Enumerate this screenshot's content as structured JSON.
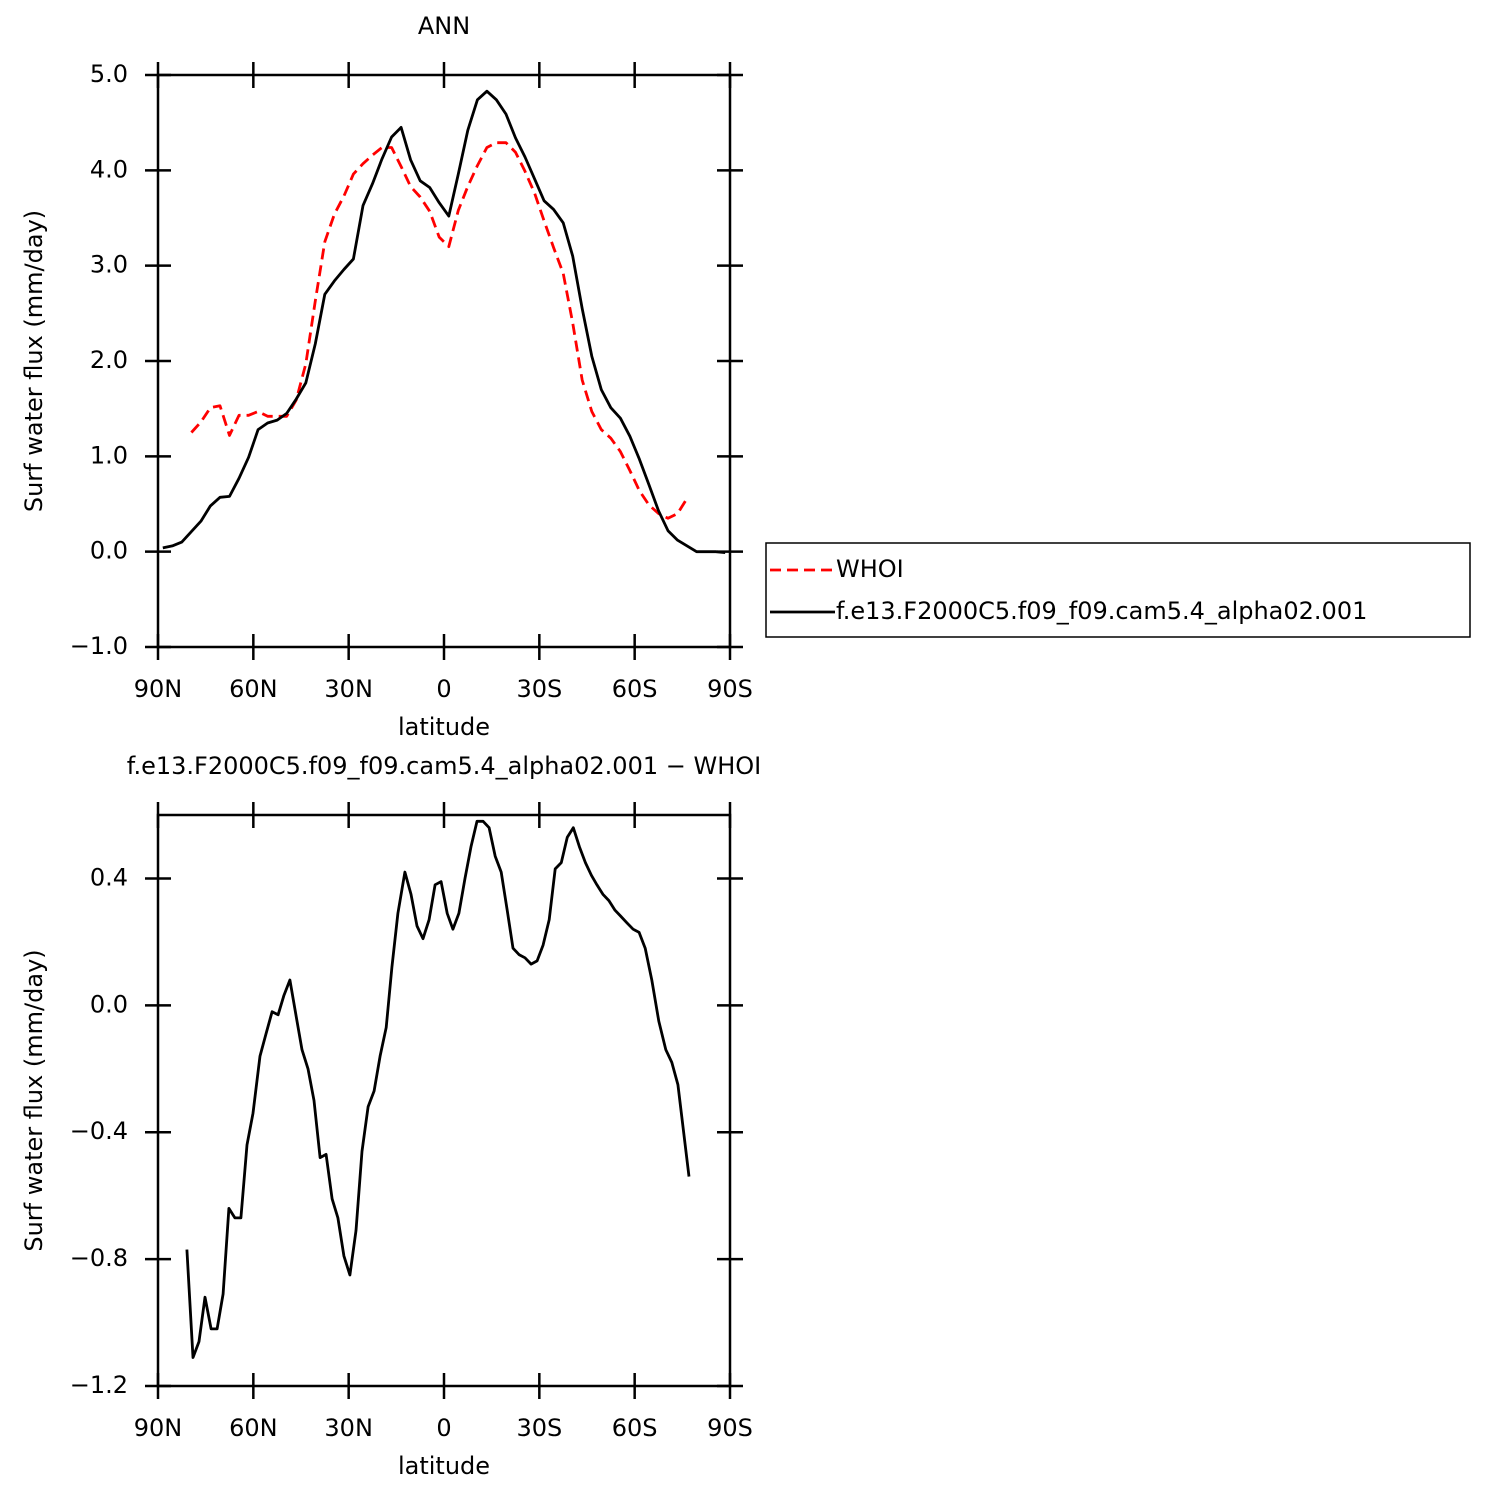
{
  "chart_data": [
    {
      "type": "line",
      "title": "ANN",
      "x_label": "latitude",
      "y_label": "Surf water flux (mm/day)",
      "x": [
        88.5,
        85.5,
        82.5,
        79.5,
        76.5,
        73.5,
        70.5,
        67.5,
        64.5,
        61.5,
        58.5,
        55.5,
        52.5,
        49.5,
        46.5,
        43.5,
        40.5,
        37.5,
        34.5,
        31.5,
        28.5,
        25.5,
        22.5,
        19.5,
        16.5,
        13.5,
        10.5,
        7.5,
        4.5,
        1.5,
        -1.5,
        -4.5,
        -7.5,
        -10.5,
        -13.5,
        -16.5,
        -19.5,
        -22.5,
        -25.5,
        -28.5,
        -31.5,
        -34.5,
        -37.5,
        -40.5,
        -43.5,
        -46.5,
        -49.5,
        -52.5,
        -55.5,
        -58.5,
        -61.5,
        -64.5,
        -67.5,
        -70.5,
        -73.5,
        -76.5,
        -79.5,
        -82.5,
        -85.5,
        -88.5
      ],
      "series": [
        {
          "name": "WHOI",
          "color": "#ff0000",
          "dashed": true,
          "values": [
            null,
            null,
            null,
            1.25,
            1.36,
            1.51,
            1.53,
            1.22,
            1.43,
            1.43,
            1.47,
            1.42,
            1.42,
            1.42,
            1.59,
            1.97,
            2.63,
            3.25,
            3.54,
            3.73,
            3.96,
            4.07,
            4.16,
            4.24,
            4.24,
            4.04,
            3.83,
            3.72,
            3.57,
            3.3,
            3.2,
            3.58,
            3.83,
            4.05,
            4.24,
            4.29,
            4.29,
            4.19,
            3.99,
            3.76,
            3.47,
            3.19,
            2.92,
            2.4,
            1.8,
            1.47,
            1.28,
            1.19,
            1.05,
            0.85,
            0.64,
            0.49,
            0.4,
            0.35,
            0.4,
            0.56,
            null,
            null,
            null,
            null
          ]
        },
        {
          "name": "f.e13.F2000C5.f09_f09.cam5.4_alpha02.001",
          "color": "#000000",
          "dashed": false,
          "values": [
            0.04,
            0.06,
            0.1,
            0.21,
            0.32,
            0.48,
            0.57,
            0.58,
            0.77,
            0.99,
            1.28,
            1.35,
            1.38,
            1.45,
            1.6,
            1.77,
            2.18,
            2.7,
            2.84,
            2.96,
            3.07,
            3.63,
            3.86,
            4.12,
            4.35,
            4.45,
            4.11,
            3.89,
            3.82,
            3.66,
            3.52,
            3.96,
            4.42,
            4.74,
            4.83,
            4.74,
            4.59,
            4.34,
            4.14,
            3.91,
            3.68,
            3.59,
            3.45,
            3.1,
            2.55,
            2.05,
            1.7,
            1.51,
            1.4,
            1.21,
            0.97,
            0.7,
            0.43,
            0.22,
            0.12,
            0.06,
            0.0,
            0.0,
            0.0,
            -0.01
          ]
        }
      ],
      "xlim": [
        90,
        -90
      ],
      "xticks": [
        {
          "value": 90,
          "label": "90N"
        },
        {
          "value": 60,
          "label": "60N"
        },
        {
          "value": 30,
          "label": "30N"
        },
        0,
        {
          "value": -30,
          "label": "30S"
        },
        {
          "value": -60,
          "label": "60S"
        },
        {
          "value": -90,
          "label": "90S"
        }
      ],
      "ylim": [
        -1,
        5
      ],
      "yticks": [
        {
          "value": -1,
          "label": "−1.0"
        },
        {
          "value": 0,
          "label": "0.0"
        },
        {
          "value": 1,
          "label": "1.0"
        },
        {
          "value": 2,
          "label": "2.0"
        },
        {
          "value": 3,
          "label": "3.0"
        },
        {
          "value": 4,
          "label": "4.0"
        },
        {
          "value": 5,
          "label": "5.0"
        }
      ],
      "legend": "right"
    },
    {
      "type": "line",
      "title": "f.e13.F2000C5.f09_f09.cam5.4_alpha02.001 − WHOI",
      "x_label": "latitude",
      "y_label": "Surf water flux (mm/day)",
      "x": [
        80.9,
        79.0,
        77.1,
        75.2,
        73.3,
        71.4,
        69.5,
        67.7,
        65.8,
        63.9,
        62.0,
        60.1,
        57.9,
        56.0,
        54.1,
        52.2,
        50.4,
        48.5,
        46.6,
        44.7,
        42.8,
        40.9,
        39.0,
        37.1,
        35.2,
        33.4,
        31.5,
        29.6,
        27.7,
        25.8,
        23.9,
        22.0,
        20.1,
        18.2,
        16.4,
        14.5,
        12.3,
        10.4,
        8.5,
        6.6,
        4.7,
        2.8,
        0.9,
        -1.0,
        -2.8,
        -4.7,
        -6.6,
        -8.5,
        -10.4,
        -12.3,
        -14.2,
        -16.1,
        -18.0,
        -19.9,
        -21.7,
        -23.6,
        -25.5,
        -27.4,
        -29.3,
        -31.2,
        -33.1,
        -35.0,
        -36.9,
        -38.8,
        -40.7,
        -42.6,
        -44.5,
        -46.4,
        -48.1,
        -50.0,
        -51.9,
        -53.8,
        -55.7,
        -57.6,
        -59.5,
        -61.4,
        -63.3,
        -65.4,
        -67.6,
        -69.8,
        -71.7,
        -73.6,
        -77.1
      ],
      "series": [
        {
          "color": "#000000",
          "dashed": false,
          "values": [
            -0.77,
            -1.11,
            -1.06,
            -0.92,
            -1.02,
            -1.02,
            -0.91,
            -0.64,
            -0.67,
            -0.67,
            -0.44,
            -0.34,
            -0.16,
            -0.09,
            -0.02,
            -0.03,
            0.03,
            0.08,
            -0.03,
            -0.14,
            -0.2,
            -0.3,
            -0.48,
            -0.47,
            -0.61,
            -0.67,
            -0.79,
            -0.85,
            -0.71,
            -0.46,
            -0.32,
            -0.27,
            -0.16,
            -0.07,
            0.12,
            0.29,
            0.42,
            0.35,
            0.25,
            0.21,
            0.27,
            0.38,
            0.39,
            0.29,
            0.24,
            0.29,
            0.4,
            0.5,
            0.58,
            0.58,
            0.56,
            0.47,
            0.42,
            0.3,
            0.18,
            0.16,
            0.15,
            0.13,
            0.14,
            0.19,
            0.27,
            0.43,
            0.45,
            0.53,
            0.56,
            0.5,
            0.45,
            0.41,
            0.38,
            0.35,
            0.33,
            0.3,
            0.28,
            0.26,
            0.24,
            0.23,
            0.18,
            0.08,
            -0.05,
            -0.14,
            -0.18,
            -0.25,
            -0.54
          ]
        }
      ],
      "xlim": [
        90,
        -90
      ],
      "xticks": [
        {
          "value": 90,
          "label": "90N"
        },
        {
          "value": 60,
          "label": "60N"
        },
        {
          "value": 30,
          "label": "30N"
        },
        0,
        {
          "value": -30,
          "label": "30S"
        },
        {
          "value": -60,
          "label": "60S"
        },
        {
          "value": -90,
          "label": "90S"
        }
      ],
      "ylim": [
        -1.2,
        0.6
      ],
      "yticks": [
        {
          "value": -1.2,
          "label": "−1.2"
        },
        {
          "value": -0.8,
          "label": "−0.8"
        },
        {
          "value": -0.4,
          "label": "−0.4"
        },
        {
          "value": 0,
          "label": "0.0"
        },
        0.4
      ]
    }
  ]
}
